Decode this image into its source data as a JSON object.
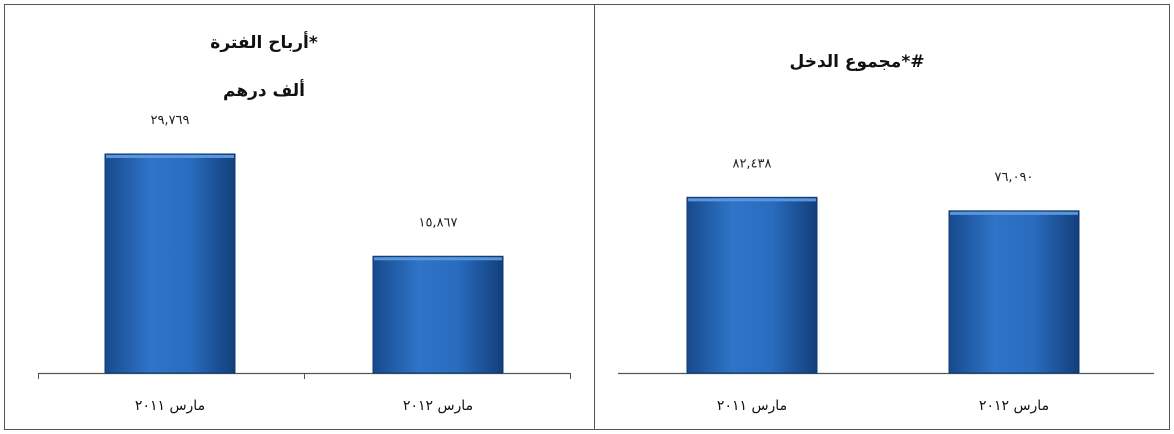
{
  "chart_data": [
    {
      "type": "bar",
      "title": "أرباح الفترة*",
      "subtitle": "ألف درهم",
      "categories": [
        "مارس ٢٠١١",
        "مارس ٢٠١٢"
      ],
      "values": [
        29769,
        15867
      ],
      "value_labels": [
        "٢٩,٧٦٩",
        "١٥,٨٦٧"
      ],
      "xlabel": "",
      "ylabel": "",
      "ylim": [
        0,
        42000
      ],
      "color": "#1f5fb0",
      "legend": "none",
      "grid": false
    },
    {
      "type": "bar",
      "title": "مجموع الدخل*#",
      "subtitle": "",
      "categories": [
        "مارس ٢٠١١",
        "مارس ٢٠١٢"
      ],
      "values": [
        82438,
        76090
      ],
      "value_labels": [
        "٨٢,٤٣٨",
        "٧٦,٠٩٠"
      ],
      "xlabel": "",
      "ylabel": "",
      "ylim": [
        0,
        145000
      ],
      "color": "#1f5fb0",
      "legend": "none",
      "grid": false
    }
  ]
}
